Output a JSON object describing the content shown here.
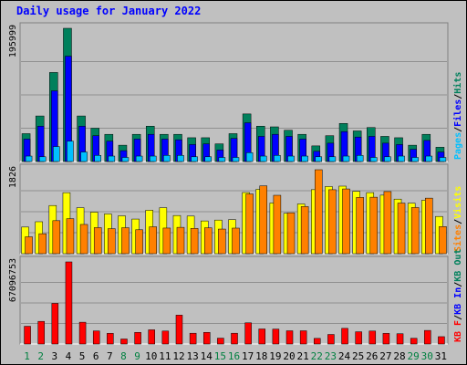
{
  "title": "Daily usage for January 2022",
  "colors": {
    "background": "#c0c0c0",
    "panel": "#c0c0c0",
    "title": "#0000ff",
    "hits": "#00805c",
    "files": "#0000ff",
    "pages": "#00c0ff",
    "visits": "#ffff00",
    "sites": "#ff8000",
    "kbin": "#ff0000",
    "kbout": "#ff8000",
    "weekday_label": "#008040",
    "weekend_label": "#008040",
    "axis_text": "#000000"
  },
  "chart_data": [
    {
      "type": "bar",
      "name": "hits-files-pages",
      "ymax_label": "195999",
      "ylim": [
        0,
        195999
      ],
      "categories": [
        "1",
        "2",
        "3",
        "4",
        "5",
        "6",
        "7",
        "8",
        "9",
        "10",
        "11",
        "12",
        "13",
        "14",
        "15",
        "16",
        "17",
        "18",
        "19",
        "20",
        "21",
        "22",
        "23",
        "24",
        "25",
        "26",
        "27",
        "28",
        "29",
        "30",
        "31"
      ],
      "legend": [
        {
          "label": "Hits",
          "color": "#00805c"
        },
        {
          "label": "Files",
          "color": "#0000ff"
        },
        {
          "label": "Pages",
          "color": "#00c0ff"
        }
      ],
      "series": [
        {
          "name": "Hits",
          "values": [
            41000,
            67000,
            131000,
            195999,
            67000,
            49000,
            40000,
            24000,
            40000,
            52000,
            40000,
            40000,
            35000,
            35000,
            26000,
            41000,
            70000,
            52000,
            51000,
            46000,
            40000,
            23000,
            38000,
            56000,
            45000,
            50000,
            37000,
            35000,
            24000,
            40000,
            21000
          ]
        },
        {
          "name": "Files",
          "values": [
            33000,
            52000,
            104000,
            155000,
            52000,
            38000,
            30000,
            16000,
            33000,
            40000,
            33000,
            32000,
            25000,
            26000,
            17000,
            34000,
            57000,
            37000,
            40000,
            37000,
            33000,
            15000,
            27000,
            44000,
            36000,
            37000,
            27000,
            25000,
            18000,
            31000,
            14000
          ]
        },
        {
          "name": "Pages",
          "values": [
            8000,
            7000,
            22000,
            30000,
            14000,
            9000,
            8000,
            6000,
            8000,
            8000,
            9000,
            9000,
            7000,
            7000,
            6000,
            6000,
            13000,
            8000,
            9000,
            8000,
            8000,
            7000,
            7000,
            8000,
            9000,
            6000,
            7000,
            8000,
            6000,
            8000,
            6000
          ]
        }
      ]
    },
    {
      "type": "bar",
      "name": "visits-sites",
      "ymax_label": "1826",
      "ylim": [
        0,
        1826
      ],
      "legend": [
        {
          "label": "Visits",
          "color": "#ffff00"
        },
        {
          "label": "Sites",
          "color": "#ff8000"
        }
      ],
      "series": [
        {
          "name": "Visits",
          "values": [
            579,
            695,
            1048,
            1327,
            1000,
            903,
            864,
            823,
            753,
            945,
            1000,
            830,
            818,
            712,
            731,
            740,
            1330,
            1400,
            1103,
            878,
            1082,
            1392,
            1460,
            1469,
            1356,
            1328,
            1273,
            1187,
            1099,
            1162,
            810
          ]
        },
        {
          "name": "Sites",
          "values": [
            367,
            434,
            718,
            761,
            636,
            567,
            544,
            565,
            520,
            585,
            557,
            573,
            550,
            563,
            535,
            556,
            1299,
            1475,
            1270,
            890,
            1025,
            1826,
            1391,
            1408,
            1224,
            1228,
            1351,
            1100,
            1004,
            1208,
            590
          ]
        }
      ]
    },
    {
      "type": "bar",
      "name": "kbin-kbout",
      "ymax_label": "67096753",
      "ylim": [
        0,
        67096753
      ],
      "legend": [
        {
          "label": "KB F",
          "color": "#ff0000"
        },
        {
          "label": "KB In",
          "color": "#0000ff"
        },
        {
          "label": "KB Out",
          "color": "#008040"
        }
      ],
      "series": [
        {
          "name": "KB F",
          "values": [
            14500000,
            18500000,
            33200000,
            67096753,
            17800000,
            10700000,
            8700000,
            4100000,
            9500000,
            11600000,
            10600000,
            23600000,
            8800000,
            9500000,
            4800000,
            8800000,
            17300000,
            12300000,
            12200000,
            10800000,
            10800000,
            4600000,
            7800000,
            12800000,
            10000000,
            10600000,
            8700000,
            8400000,
            4700000,
            11100000,
            6000000
          ]
        }
      ]
    }
  ],
  "x_labels": [
    "1",
    "2",
    "3",
    "4",
    "5",
    "6",
    "7",
    "8",
    "9",
    "10",
    "11",
    "12",
    "13",
    "14",
    "15",
    "16",
    "17",
    "18",
    "19",
    "20",
    "21",
    "22",
    "23",
    "24",
    "25",
    "26",
    "27",
    "28",
    "29",
    "30",
    "31"
  ],
  "weekend_days": [
    "1",
    "2",
    "8",
    "9",
    "15",
    "16",
    "22",
    "23",
    "29",
    "30"
  ],
  "right_labels": {
    "top": [
      "Hits",
      "/",
      "Files",
      "/",
      "Pages"
    ],
    "middle": [
      "Visits",
      "/",
      "Sites"
    ],
    "bottom": [
      "KB Out",
      "/",
      "KB In",
      "/",
      "KB F"
    ]
  }
}
